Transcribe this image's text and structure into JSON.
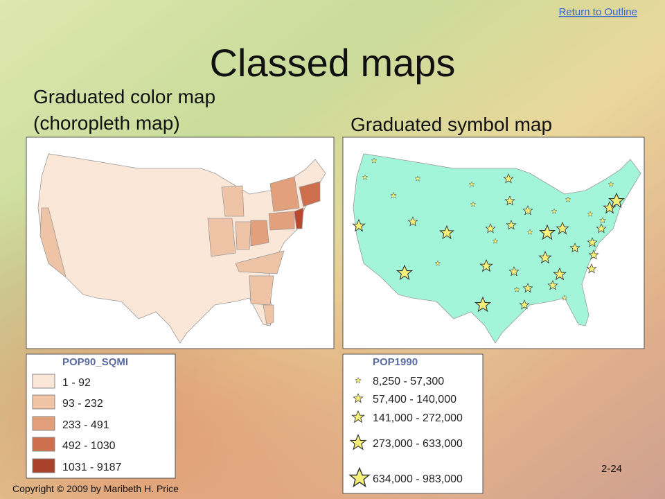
{
  "header": {
    "link": "Return to Outline",
    "title": "Classed maps"
  },
  "left": {
    "caption": [
      "Graduated color map",
      "(choropleth map)"
    ],
    "legend": {
      "title": "POP90_SQMI",
      "entries": [
        "1 - 92",
        "93 - 232",
        "233 - 491",
        "492 - 1030",
        "1031 - 9187"
      ]
    }
  },
  "right": {
    "caption": [
      "Graduated symbol map"
    ],
    "legend": {
      "title": "POP1990",
      "entries": [
        "8,250 - 57,300",
        "57,400 - 140,000",
        "141,000 - 272,000",
        "273,000 - 633,000",
        "634,000 - 983,000"
      ]
    }
  },
  "footer": {
    "slide_number": "2-24",
    "copyright": "Copyright © 2009 by Maribeth H. Price"
  }
}
